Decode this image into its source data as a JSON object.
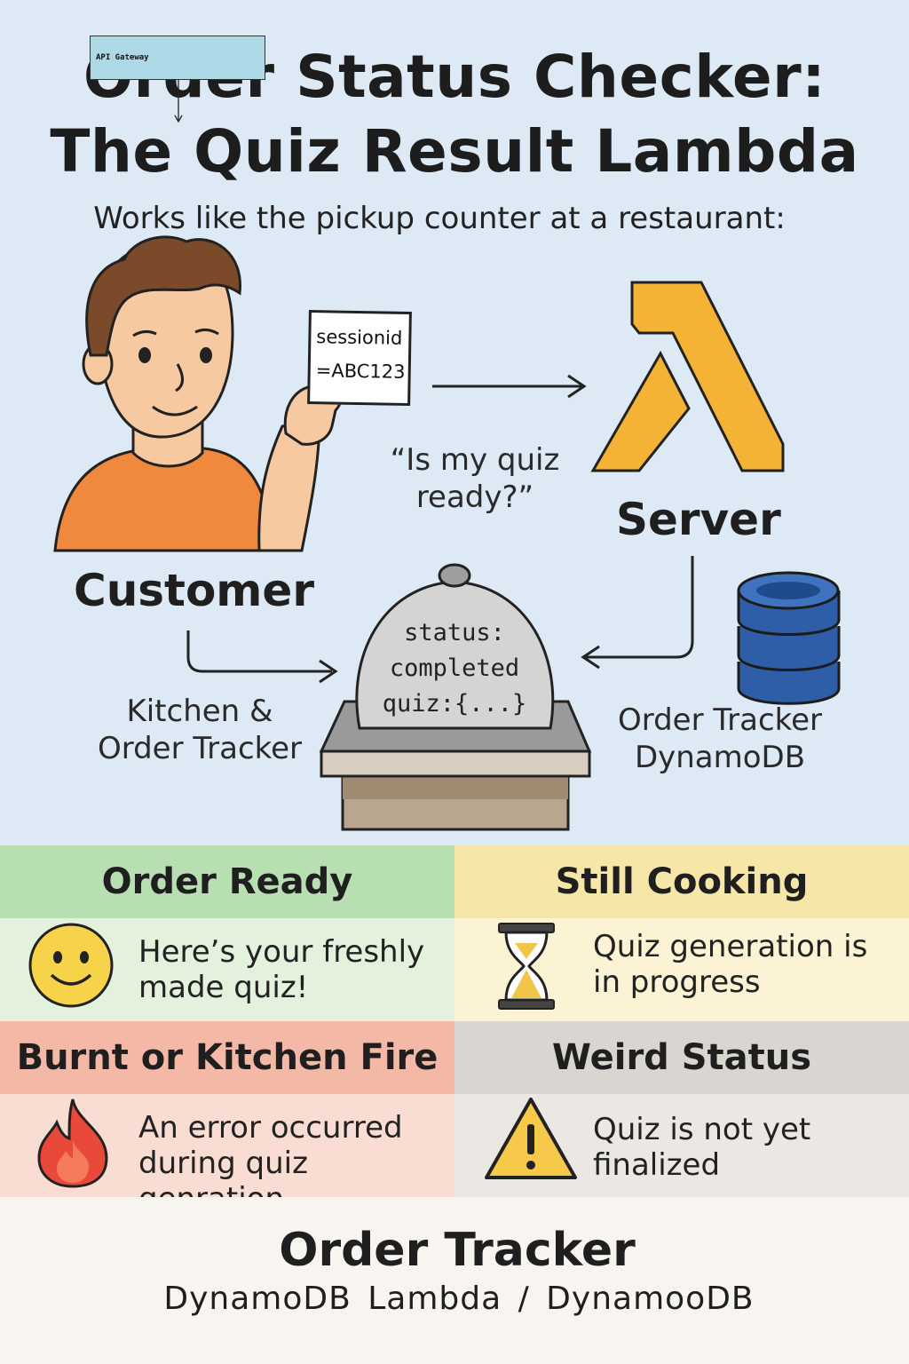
{
  "header": {
    "title_line1": "Order Status Checker:",
    "title_line2": "The Quiz Result Lambda",
    "subtitle": "Works like the pickup counter at a restaurant:",
    "overlay_box_label": "API Gateway"
  },
  "diagram": {
    "ticket_line1": "sessionid",
    "ticket_line2": "=ABC123",
    "speech": "“Is my quiz ready?”",
    "customer_label": "Customer",
    "server_label": "Server",
    "kitchen_label_line1": "Kitchen &",
    "kitchen_label_line2": "Order Tracker",
    "tracker_label_line1": "Order Tracker",
    "tracker_label_line2": "DynamoDB",
    "cloche_line1": "status:",
    "cloche_line2": "completed",
    "cloche_line3": "quiz:{...}"
  },
  "statuses": [
    {
      "title": "Order Ready",
      "text": "Here’s your freshly made quiz!",
      "icon": "smiley-icon",
      "head_color": "#b7dfb2"
    },
    {
      "title": "Still Cooking",
      "text": "Quiz generation is in progress",
      "icon": "hourglass-icon",
      "head_color": "#f6e6a8"
    },
    {
      "title": "Burnt or Kitchen Fire",
      "text": "An error occurred during quiz genration",
      "icon": "fire-icon",
      "head_color": "#f3b8a6"
    },
    {
      "title": "Weird Status",
      "text": "Quiz is not yet finalized",
      "icon": "warning-icon",
      "head_color": "#d9d6d2"
    }
  ],
  "footer": {
    "title": "Order Tracker",
    "subtitle": "DynamoDB  Lambda / DynamooDB"
  },
  "colors": {
    "lambda_orange": "#f5b335",
    "db_blue": "#2f5ea8",
    "shirt_orange": "#f0883e",
    "background": "#dde9f4"
  }
}
